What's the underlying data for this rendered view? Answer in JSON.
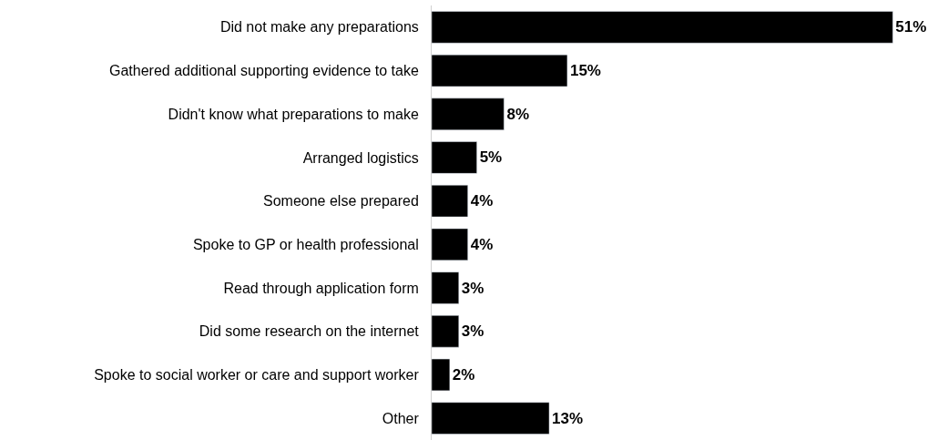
{
  "chart_data": {
    "type": "bar",
    "orientation": "horizontal",
    "categories": [
      "Did not make any preparations",
      "Gathered additional supporting evidence to take",
      "Didn't know what preparations to make",
      "Arranged logistics",
      "Someone else prepared",
      "Spoke to GP or health professional",
      "Read through application form",
      "Did some research on the internet",
      "Spoke to social worker or care and support worker",
      "Other"
    ],
    "values": [
      51,
      15,
      8,
      5,
      4,
      4,
      3,
      3,
      2,
      13
    ],
    "value_labels": [
      "51%",
      "15%",
      "8%",
      "5%",
      "4%",
      "4%",
      "3%",
      "3%",
      "2%",
      "13%"
    ],
    "color": "#000000",
    "xlim": [
      0,
      56
    ]
  }
}
